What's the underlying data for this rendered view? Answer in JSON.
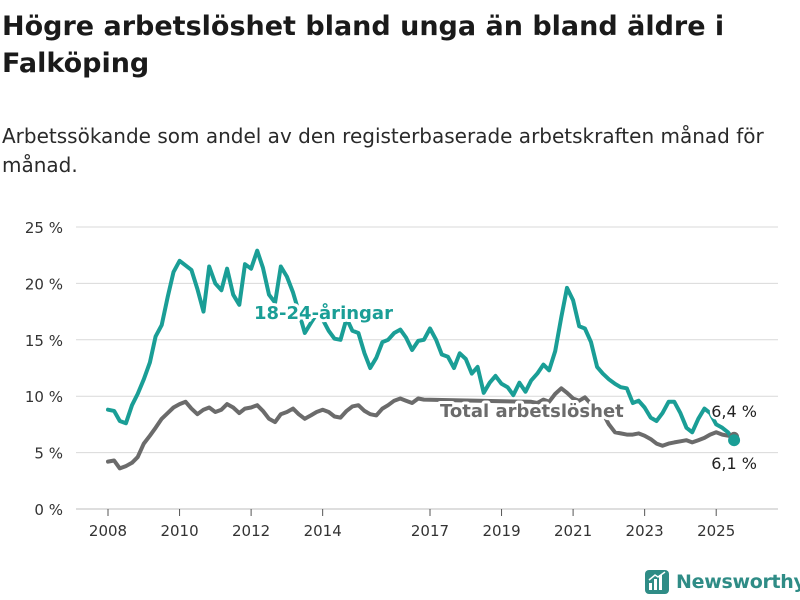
{
  "title": "Högre arbetslöshet bland unga än bland äldre i Falköping",
  "subtitle": "Arbetssökande som andel av den registerbaserade arbetskraften månad för månad.",
  "brand": "Newsworthy",
  "colors": {
    "youth": "#1a9e96",
    "total": "#6b6b6b",
    "grid": "#d9d9d9",
    "brand": "#2f8c86"
  },
  "chart_data": {
    "type": "line",
    "ylim": [
      0,
      25
    ],
    "xlim": [
      2008,
      2025.833
    ],
    "y_ticks": [
      {
        "value": 0,
        "label": "0 %"
      },
      {
        "value": 5,
        "label": "5 %"
      },
      {
        "value": 10,
        "label": "10 %"
      },
      {
        "value": 15,
        "label": "15 %"
      },
      {
        "value": 20,
        "label": "20 %"
      },
      {
        "value": 25,
        "label": "25 %"
      }
    ],
    "x_ticks": [
      {
        "value": 2008,
        "label": "2008"
      },
      {
        "value": 2010,
        "label": "2010"
      },
      {
        "value": 2012,
        "label": "2012"
      },
      {
        "value": 2014,
        "label": "2014"
      },
      {
        "value": 2017,
        "label": "2017"
      },
      {
        "value": 2019,
        "label": "2019"
      },
      {
        "value": 2021,
        "label": "2021"
      },
      {
        "value": 2023,
        "label": "2023"
      },
      {
        "value": 2025,
        "label": "2025"
      }
    ],
    "grid": true,
    "series": [
      {
        "name": "18-24-åringar",
        "color": "#1a9e96",
        "last_label": "6,1 %",
        "points": [
          [
            2008.0,
            8.8
          ],
          [
            2008.17,
            8.7
          ],
          [
            2008.33,
            7.8
          ],
          [
            2008.5,
            7.6
          ],
          [
            2008.67,
            9.2
          ],
          [
            2008.83,
            10.2
          ],
          [
            2009.0,
            11.5
          ],
          [
            2009.17,
            13.0
          ],
          [
            2009.33,
            15.3
          ],
          [
            2009.5,
            16.3
          ],
          [
            2009.67,
            18.8
          ],
          [
            2009.83,
            21.0
          ],
          [
            2010.0,
            22.0
          ],
          [
            2010.17,
            21.6
          ],
          [
            2010.33,
            21.2
          ],
          [
            2010.5,
            19.5
          ],
          [
            2010.67,
            17.5
          ],
          [
            2010.83,
            21.5
          ],
          [
            2011.0,
            20.0
          ],
          [
            2011.17,
            19.4
          ],
          [
            2011.33,
            21.3
          ],
          [
            2011.5,
            19.0
          ],
          [
            2011.67,
            18.1
          ],
          [
            2011.83,
            21.7
          ],
          [
            2012.0,
            21.3
          ],
          [
            2012.17,
            22.9
          ],
          [
            2012.33,
            21.4
          ],
          [
            2012.5,
            19.0
          ],
          [
            2012.67,
            18.3
          ],
          [
            2012.83,
            21.5
          ],
          [
            2013.0,
            20.6
          ],
          [
            2013.17,
            19.2
          ],
          [
            2013.33,
            17.5
          ],
          [
            2013.5,
            15.6
          ],
          [
            2013.67,
            16.5
          ],
          [
            2013.83,
            17.3
          ],
          [
            2014.0,
            16.8
          ],
          [
            2014.17,
            15.8
          ],
          [
            2014.33,
            15.1
          ],
          [
            2014.5,
            15.0
          ],
          [
            2014.67,
            16.9
          ],
          [
            2014.83,
            15.8
          ],
          [
            2015.0,
            15.6
          ],
          [
            2015.17,
            13.8
          ],
          [
            2015.33,
            12.5
          ],
          [
            2015.5,
            13.4
          ],
          [
            2015.67,
            14.8
          ],
          [
            2015.83,
            15.0
          ],
          [
            2016.0,
            15.6
          ],
          [
            2016.17,
            15.9
          ],
          [
            2016.33,
            15.2
          ],
          [
            2016.5,
            14.1
          ],
          [
            2016.67,
            14.9
          ],
          [
            2016.83,
            15.0
          ],
          [
            2017.0,
            16.0
          ],
          [
            2017.17,
            15.0
          ],
          [
            2017.33,
            13.7
          ],
          [
            2017.5,
            13.5
          ],
          [
            2017.67,
            12.5
          ],
          [
            2017.83,
            13.8
          ],
          [
            2018.0,
            13.3
          ],
          [
            2018.17,
            12.0
          ],
          [
            2018.33,
            12.6
          ],
          [
            2018.5,
            10.3
          ],
          [
            2018.67,
            11.2
          ],
          [
            2018.83,
            11.8
          ],
          [
            2019.0,
            11.1
          ],
          [
            2019.17,
            10.8
          ],
          [
            2019.33,
            10.1
          ],
          [
            2019.5,
            11.2
          ],
          [
            2019.67,
            10.4
          ],
          [
            2019.83,
            11.4
          ],
          [
            2020.0,
            12.0
          ],
          [
            2020.17,
            12.8
          ],
          [
            2020.33,
            12.3
          ],
          [
            2020.5,
            14.0
          ],
          [
            2020.67,
            17.0
          ],
          [
            2020.83,
            19.6
          ],
          [
            2021.0,
            18.5
          ],
          [
            2021.17,
            16.2
          ],
          [
            2021.33,
            16.0
          ],
          [
            2021.5,
            14.8
          ],
          [
            2021.67,
            12.6
          ],
          [
            2021.83,
            12.0
          ],
          [
            2022.0,
            11.5
          ],
          [
            2022.17,
            11.1
          ],
          [
            2022.33,
            10.8
          ],
          [
            2022.5,
            10.7
          ],
          [
            2022.67,
            9.4
          ],
          [
            2022.83,
            9.6
          ],
          [
            2023.0,
            9.0
          ],
          [
            2023.17,
            8.1
          ],
          [
            2023.33,
            7.8
          ],
          [
            2023.5,
            8.5
          ],
          [
            2023.67,
            9.5
          ],
          [
            2023.83,
            9.5
          ],
          [
            2024.0,
            8.5
          ],
          [
            2024.17,
            7.2
          ],
          [
            2024.33,
            6.8
          ],
          [
            2024.5,
            8.0
          ],
          [
            2024.67,
            8.9
          ],
          [
            2024.83,
            8.5
          ],
          [
            2025.0,
            7.5
          ],
          [
            2025.17,
            7.2
          ],
          [
            2025.33,
            6.8
          ],
          [
            2025.5,
            6.1
          ]
        ]
      },
      {
        "name": "Total arbetslöshet",
        "color": "#6b6b6b",
        "last_label": "6,4 %",
        "points": [
          [
            2008.0,
            4.2
          ],
          [
            2008.17,
            4.3
          ],
          [
            2008.33,
            3.6
          ],
          [
            2008.5,
            3.8
          ],
          [
            2008.67,
            4.1
          ],
          [
            2008.83,
            4.6
          ],
          [
            2009.0,
            5.8
          ],
          [
            2009.17,
            6.5
          ],
          [
            2009.33,
            7.2
          ],
          [
            2009.5,
            8.0
          ],
          [
            2009.67,
            8.5
          ],
          [
            2009.83,
            9.0
          ],
          [
            2010.0,
            9.3
          ],
          [
            2010.17,
            9.5
          ],
          [
            2010.33,
            8.9
          ],
          [
            2010.5,
            8.4
          ],
          [
            2010.67,
            8.8
          ],
          [
            2010.83,
            9.0
          ],
          [
            2011.0,
            8.6
          ],
          [
            2011.17,
            8.8
          ],
          [
            2011.33,
            9.3
          ],
          [
            2011.5,
            9.0
          ],
          [
            2011.67,
            8.5
          ],
          [
            2011.83,
            8.9
          ],
          [
            2012.0,
            9.0
          ],
          [
            2012.17,
            9.2
          ],
          [
            2012.33,
            8.7
          ],
          [
            2012.5,
            8.0
          ],
          [
            2012.67,
            7.7
          ],
          [
            2012.83,
            8.4
          ],
          [
            2013.0,
            8.6
          ],
          [
            2013.17,
            8.9
          ],
          [
            2013.33,
            8.4
          ],
          [
            2013.5,
            8.0
          ],
          [
            2013.67,
            8.3
          ],
          [
            2013.83,
            8.6
          ],
          [
            2014.0,
            8.8
          ],
          [
            2014.17,
            8.6
          ],
          [
            2014.33,
            8.2
          ],
          [
            2014.5,
            8.1
          ],
          [
            2014.67,
            8.7
          ],
          [
            2014.83,
            9.1
          ],
          [
            2015.0,
            9.2
          ],
          [
            2015.17,
            8.7
          ],
          [
            2015.33,
            8.4
          ],
          [
            2015.5,
            8.3
          ],
          [
            2015.67,
            8.9
          ],
          [
            2015.83,
            9.2
          ],
          [
            2016.0,
            9.6
          ],
          [
            2016.17,
            9.8
          ],
          [
            2016.33,
            9.6
          ],
          [
            2016.5,
            9.4
          ],
          [
            2016.67,
            9.8
          ],
          [
            2016.83,
            9.7
          ],
          [
            2019.83,
            9.5
          ],
          [
            2020.0,
            9.4
          ],
          [
            2020.17,
            9.7
          ],
          [
            2020.33,
            9.5
          ],
          [
            2020.5,
            10.2
          ],
          [
            2020.67,
            10.7
          ],
          [
            2020.83,
            10.3
          ],
          [
            2021.0,
            9.8
          ],
          [
            2021.17,
            9.6
          ],
          [
            2021.33,
            9.9
          ],
          [
            2021.5,
            9.3
          ],
          [
            2021.67,
            8.8
          ],
          [
            2021.83,
            8.5
          ],
          [
            2022.0,
            7.5
          ],
          [
            2022.17,
            6.8
          ],
          [
            2022.33,
            6.7
          ],
          [
            2022.5,
            6.6
          ],
          [
            2022.67,
            6.6
          ],
          [
            2022.83,
            6.7
          ],
          [
            2023.0,
            6.5
          ],
          [
            2023.17,
            6.2
          ],
          [
            2023.33,
            5.8
          ],
          [
            2023.5,
            5.6
          ],
          [
            2023.67,
            5.8
          ],
          [
            2023.83,
            5.9
          ],
          [
            2024.0,
            6.0
          ],
          [
            2024.17,
            6.1
          ],
          [
            2024.33,
            5.9
          ],
          [
            2024.5,
            6.1
          ],
          [
            2024.67,
            6.3
          ],
          [
            2024.83,
            6.6
          ],
          [
            2025.0,
            6.8
          ],
          [
            2025.17,
            6.6
          ],
          [
            2025.33,
            6.5
          ],
          [
            2025.5,
            6.4
          ]
        ]
      }
    ]
  }
}
